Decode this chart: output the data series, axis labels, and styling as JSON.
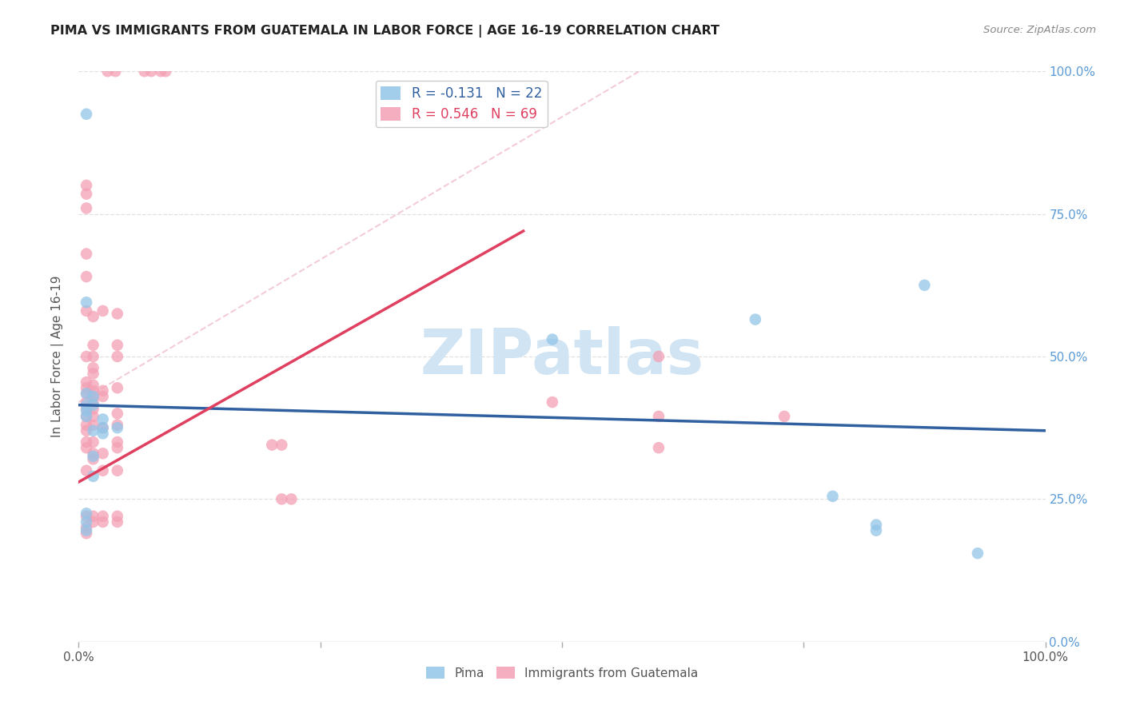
{
  "title": "PIMA VS IMMIGRANTS FROM GUATEMALA IN LABOR FORCE | AGE 16-19 CORRELATION CHART",
  "source": "Source: ZipAtlas.com",
  "ylabel": "In Labor Force | Age 16-19",
  "xlim": [
    0.0,
    1.0
  ],
  "ylim": [
    0.0,
    1.0
  ],
  "background_color": "#ffffff",
  "grid_color": "#e0e0e0",
  "pima_color": "#92c5e8",
  "guatemala_color": "#f4a0b5",
  "pima_line_color": "#3060a0",
  "guatemala_line_color": "#e04060",
  "diag_color": "#f0c0cc",
  "watermark_color": "#d0e4f4",
  "pima_scatter": [
    [
      0.008,
      0.925
    ],
    [
      0.008,
      0.595
    ],
    [
      0.008,
      0.435
    ],
    [
      0.008,
      0.415
    ],
    [
      0.008,
      0.405
    ],
    [
      0.008,
      0.395
    ],
    [
      0.008,
      0.225
    ],
    [
      0.008,
      0.21
    ],
    [
      0.008,
      0.195
    ],
    [
      0.015,
      0.43
    ],
    [
      0.015,
      0.415
    ],
    [
      0.015,
      0.37
    ],
    [
      0.015,
      0.325
    ],
    [
      0.015,
      0.29
    ],
    [
      0.025,
      0.39
    ],
    [
      0.025,
      0.375
    ],
    [
      0.025,
      0.365
    ],
    [
      0.04,
      0.375
    ],
    [
      0.49,
      0.53
    ],
    [
      0.7,
      0.565
    ],
    [
      0.78,
      0.255
    ],
    [
      0.825,
      0.205
    ],
    [
      0.825,
      0.195
    ],
    [
      0.875,
      0.625
    ],
    [
      0.93,
      0.155
    ]
  ],
  "guatemala_scatter": [
    [
      0.03,
      1.0
    ],
    [
      0.038,
      1.0
    ],
    [
      0.068,
      1.0
    ],
    [
      0.075,
      1.0
    ],
    [
      0.085,
      1.0
    ],
    [
      0.09,
      1.0
    ],
    [
      0.008,
      0.8
    ],
    [
      0.008,
      0.785
    ],
    [
      0.008,
      0.76
    ],
    [
      0.008,
      0.68
    ],
    [
      0.008,
      0.64
    ],
    [
      0.008,
      0.58
    ],
    [
      0.008,
      0.5
    ],
    [
      0.008,
      0.455
    ],
    [
      0.008,
      0.445
    ],
    [
      0.008,
      0.435
    ],
    [
      0.008,
      0.42
    ],
    [
      0.008,
      0.408
    ],
    [
      0.008,
      0.395
    ],
    [
      0.008,
      0.38
    ],
    [
      0.008,
      0.37
    ],
    [
      0.008,
      0.35
    ],
    [
      0.008,
      0.34
    ],
    [
      0.008,
      0.3
    ],
    [
      0.008,
      0.22
    ],
    [
      0.008,
      0.2
    ],
    [
      0.008,
      0.19
    ],
    [
      0.015,
      0.57
    ],
    [
      0.015,
      0.52
    ],
    [
      0.015,
      0.5
    ],
    [
      0.015,
      0.48
    ],
    [
      0.015,
      0.47
    ],
    [
      0.015,
      0.45
    ],
    [
      0.015,
      0.44
    ],
    [
      0.015,
      0.43
    ],
    [
      0.015,
      0.42
    ],
    [
      0.015,
      0.408
    ],
    [
      0.015,
      0.395
    ],
    [
      0.015,
      0.38
    ],
    [
      0.015,
      0.35
    ],
    [
      0.015,
      0.33
    ],
    [
      0.015,
      0.32
    ],
    [
      0.015,
      0.22
    ],
    [
      0.015,
      0.21
    ],
    [
      0.025,
      0.58
    ],
    [
      0.025,
      0.44
    ],
    [
      0.025,
      0.43
    ],
    [
      0.025,
      0.375
    ],
    [
      0.025,
      0.33
    ],
    [
      0.025,
      0.3
    ],
    [
      0.025,
      0.22
    ],
    [
      0.025,
      0.21
    ],
    [
      0.04,
      0.575
    ],
    [
      0.04,
      0.52
    ],
    [
      0.04,
      0.5
    ],
    [
      0.04,
      0.445
    ],
    [
      0.04,
      0.4
    ],
    [
      0.04,
      0.38
    ],
    [
      0.04,
      0.35
    ],
    [
      0.04,
      0.34
    ],
    [
      0.04,
      0.3
    ],
    [
      0.04,
      0.22
    ],
    [
      0.04,
      0.21
    ],
    [
      0.2,
      0.345
    ],
    [
      0.21,
      0.345
    ],
    [
      0.21,
      0.25
    ],
    [
      0.22,
      0.25
    ],
    [
      0.49,
      0.42
    ],
    [
      0.6,
      0.5
    ],
    [
      0.6,
      0.395
    ],
    [
      0.73,
      0.395
    ],
    [
      0.6,
      0.34
    ]
  ],
  "pima_line": {
    "x0": 0.0,
    "y0": 0.415,
    "x1": 1.0,
    "y1": 0.37
  },
  "guatemala_line": {
    "x0": 0.0,
    "y0": 0.28,
    "x1": 0.46,
    "y1": 0.72
  },
  "diag_line": {
    "x0": 0.0,
    "y0": 0.42,
    "x1": 0.58,
    "y1": 1.0
  }
}
